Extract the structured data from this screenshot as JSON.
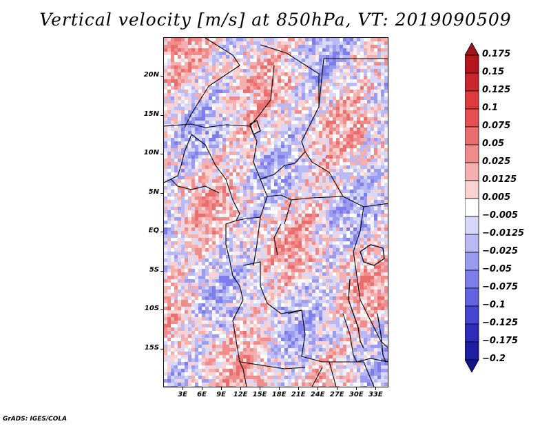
{
  "title": "Vertical velocity [m/s] at 850hPa, VT: 2019090509",
  "footer": "GrADS: IGES/COLA",
  "map": {
    "projection": "latlon",
    "lon_range": [
      0,
      35
    ],
    "lat_range": [
      -20,
      25
    ],
    "lat_ticks": [
      {
        "label": "20N",
        "value": 20
      },
      {
        "label": "15N",
        "value": 15
      },
      {
        "label": "10N",
        "value": 10
      },
      {
        "label": "5N",
        "value": 5
      },
      {
        "label": "EQ",
        "value": 0
      },
      {
        "label": "5S",
        "value": -5
      },
      {
        "label": "10S",
        "value": -10
      },
      {
        "label": "15S",
        "value": -15
      }
    ],
    "lon_ticks": [
      {
        "label": "3E",
        "value": 3
      },
      {
        "label": "6E",
        "value": 6
      },
      {
        "label": "9E",
        "value": 9
      },
      {
        "label": "12E",
        "value": 12
      },
      {
        "label": "15E",
        "value": 15
      },
      {
        "label": "18E",
        "value": 18
      },
      {
        "label": "21E",
        "value": 21
      },
      {
        "label": "24E",
        "value": 24
      },
      {
        "label": "27E",
        "value": 27
      },
      {
        "label": "30E",
        "value": 30
      },
      {
        "label": "33E",
        "value": 33
      }
    ],
    "field_variable": "Vertical velocity",
    "field_units": "m/s",
    "level": "850hPa",
    "valid_time": "2019090509"
  },
  "colorbar": {
    "labels": [
      "0.175",
      "0.15",
      "0.125",
      "0.1",
      "0.075",
      "0.05",
      "0.025",
      "0.0125",
      "0.005",
      "−0.005",
      "−0.0125",
      "−0.025",
      "−0.05",
      "−0.075",
      "−0.1",
      "−0.125",
      "−0.175",
      "−0.2"
    ],
    "colors": [
      "#a0141e",
      "#b4161e",
      "#c8282d",
      "#dc3c3c",
      "#e65050",
      "#eb6e6e",
      "#f08c8c",
      "#f5afaf",
      "#fad2d2",
      "#ffffff",
      "#d7d7fa",
      "#b9b9f5",
      "#9b9bf0",
      "#7d7deb",
      "#6464e1",
      "#4646d2",
      "#2d2db9",
      "#1e1ea0",
      "#14148c"
    ]
  }
}
